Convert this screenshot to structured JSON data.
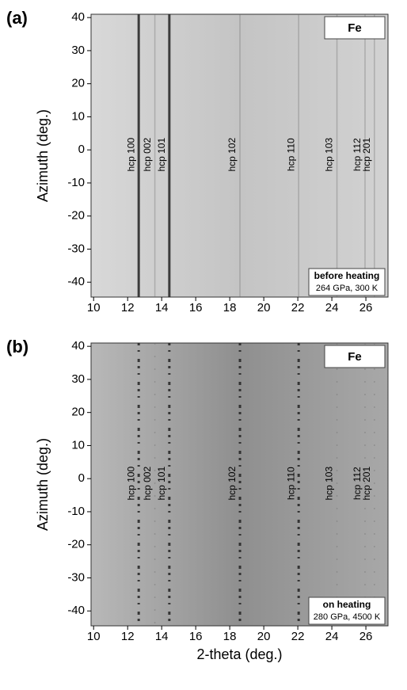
{
  "chart_data": [
    {
      "type": "diffraction",
      "panel_label": "(a)",
      "title": "Fe",
      "annotation": "before heating",
      "annotation_detail": "264 GPa, 300 K",
      "ylabel": "Azimuth (deg.)",
      "xlim": [
        9.85,
        27.3
      ],
      "ylim": [
        -44.5,
        41
      ],
      "xticks": [
        10,
        12,
        14,
        16,
        18,
        20,
        22,
        24,
        26
      ],
      "yticks": [
        40,
        30,
        20,
        10,
        0,
        -10,
        -20,
        -30,
        -40
      ],
      "line_style": "solid",
      "peaks": [
        {
          "label": "hcp 100",
          "x": 12.65,
          "strong": true
        },
        {
          "label": "hcp 002",
          "x": 13.6,
          "strong": false
        },
        {
          "label": "hcp 101",
          "x": 14.45,
          "strong": true
        },
        {
          "label": "hcp 102",
          "x": 18.6,
          "strong": false
        },
        {
          "label": "hcp 110",
          "x": 22.05,
          "strong": false
        },
        {
          "label": "hcp 103",
          "x": 24.3,
          "strong": false
        },
        {
          "label": "hcp 112",
          "x": 25.95,
          "strong": false
        },
        {
          "label": "hcp 201",
          "x": 26.5,
          "strong": false
        }
      ]
    },
    {
      "type": "diffraction",
      "panel_label": "(b)",
      "title": "Fe",
      "annotation": "on heating",
      "annotation_detail": "280 GPa, 4500 K",
      "xlabel": "2-theta (deg.)",
      "ylabel": "Azimuth (deg.)",
      "xlim": [
        9.85,
        27.3
      ],
      "ylim": [
        -44.5,
        41
      ],
      "xticks": [
        10,
        12,
        14,
        16,
        18,
        20,
        22,
        24,
        26
      ],
      "yticks": [
        40,
        30,
        20,
        10,
        0,
        -10,
        -20,
        -30,
        -40
      ],
      "line_style": "spotty",
      "peaks": [
        {
          "label": "hcp 100",
          "x": 12.65,
          "strong": true
        },
        {
          "label": "hcp 002",
          "x": 13.6,
          "strong": false
        },
        {
          "label": "hcp 101",
          "x": 14.45,
          "strong": true
        },
        {
          "label": "hcp 102",
          "x": 18.6,
          "strong": true
        },
        {
          "label": "hcp 110",
          "x": 22.05,
          "strong": true
        },
        {
          "label": "hcp 103",
          "x": 24.3,
          "strong": false
        },
        {
          "label": "hcp 112",
          "x": 25.95,
          "strong": false
        },
        {
          "label": "hcp 201",
          "x": 26.5,
          "strong": false
        }
      ]
    }
  ]
}
